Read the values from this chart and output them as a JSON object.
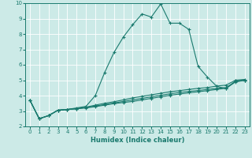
{
  "xlabel": "Humidex (Indice chaleur)",
  "ylabel": "",
  "bg_color": "#cceae7",
  "line_color": "#1a7a6e",
  "grid_color": "#ffffff",
  "xlim": [
    -0.5,
    23.5
  ],
  "ylim": [
    2,
    10
  ],
  "xticks": [
    0,
    1,
    2,
    3,
    4,
    5,
    6,
    7,
    8,
    9,
    10,
    11,
    12,
    13,
    14,
    15,
    16,
    17,
    18,
    19,
    20,
    21,
    22,
    23
  ],
  "yticks": [
    2,
    3,
    4,
    5,
    6,
    7,
    8,
    9,
    10
  ],
  "line1_x": [
    0,
    1,
    2,
    3,
    4,
    5,
    6,
    7,
    8,
    9,
    10,
    11,
    12,
    13,
    14,
    15,
    16,
    17,
    18,
    19,
    20,
    21,
    22,
    23
  ],
  "line1_y": [
    3.7,
    2.5,
    2.7,
    3.05,
    3.1,
    3.2,
    3.3,
    4.0,
    5.5,
    6.8,
    7.8,
    8.6,
    9.3,
    9.1,
    9.95,
    8.7,
    8.7,
    8.3,
    5.9,
    5.2,
    4.6,
    4.45,
    4.95,
    5.0
  ],
  "line2_x": [
    0,
    1,
    2,
    3,
    4,
    5,
    6,
    7,
    8,
    9,
    10,
    11,
    12,
    13,
    14,
    15,
    16,
    17,
    18,
    19,
    20,
    21,
    22,
    23
  ],
  "line2_y": [
    3.7,
    2.5,
    2.7,
    3.05,
    3.1,
    3.15,
    3.2,
    3.28,
    3.38,
    3.48,
    3.55,
    3.62,
    3.72,
    3.82,
    3.92,
    4.02,
    4.1,
    4.18,
    4.25,
    4.32,
    4.4,
    4.48,
    4.88,
    5.0
  ],
  "line3_x": [
    0,
    1,
    2,
    3,
    4,
    5,
    6,
    7,
    8,
    9,
    10,
    11,
    12,
    13,
    14,
    15,
    16,
    17,
    18,
    19,
    20,
    21,
    22,
    23
  ],
  "line3_y": [
    3.7,
    2.5,
    2.7,
    3.05,
    3.1,
    3.15,
    3.22,
    3.32,
    3.42,
    3.52,
    3.62,
    3.72,
    3.82,
    3.92,
    4.02,
    4.12,
    4.2,
    4.27,
    4.33,
    4.4,
    4.47,
    4.52,
    4.92,
    5.0
  ],
  "line4_x": [
    0,
    1,
    2,
    3,
    4,
    5,
    6,
    7,
    8,
    9,
    10,
    11,
    12,
    13,
    14,
    15,
    16,
    17,
    18,
    19,
    20,
    21,
    22,
    23
  ],
  "line4_y": [
    3.7,
    2.5,
    2.7,
    3.05,
    3.1,
    3.15,
    3.25,
    3.38,
    3.5,
    3.6,
    3.72,
    3.85,
    3.95,
    4.05,
    4.15,
    4.25,
    4.32,
    4.4,
    4.47,
    4.52,
    4.62,
    4.68,
    5.0,
    5.05
  ]
}
